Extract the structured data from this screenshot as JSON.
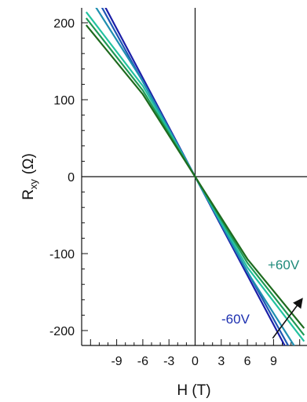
{
  "chart_data": {
    "type": "line",
    "title": "",
    "xlabel": "H (T)",
    "ylabel_main": "R",
    "ylabel_sub": "xy",
    "ylabel_unit": "(Ω)",
    "xlim": [
      -12.5,
      12.5
    ],
    "ylim": [
      -220,
      220
    ],
    "x_ticks": [
      -9,
      -6,
      -3,
      0,
      3,
      6,
      9
    ],
    "x_tick_labels": [
      "-9",
      "-6",
      "-3",
      "0",
      "3",
      "6",
      "9"
    ],
    "y_ticks": [
      -200,
      -100,
      0,
      100,
      200
    ],
    "y_tick_labels": [
      "-200",
      "-100",
      "0",
      "100",
      "200"
    ],
    "zero_lines": true,
    "grid": false,
    "legend": "none",
    "annotations": [
      {
        "text": "+60V",
        "color": "#1f8a7a"
      },
      {
        "text": "-60V",
        "color": "#1c2fb0"
      }
    ],
    "arrow": {
      "from": [
        8.9,
        -210
      ],
      "to": [
        12.2,
        -160
      ]
    },
    "series": [
      {
        "color": "#1b1fa8",
        "x": [
          -12.5,
          0,
          12.5
        ],
        "y": [
          267,
          0,
          -267
        ]
      },
      {
        "color": "#1e56b4",
        "x": [
          -12.5,
          0,
          12.5
        ],
        "y": [
          257,
          0,
          -257
        ]
      },
      {
        "color": "#1f8fb0",
        "x": [
          -12.5,
          -6,
          0,
          6,
          12.5
        ],
        "y": [
          240,
          124,
          0,
          -124,
          -240
        ]
      },
      {
        "color": "#22c2a0",
        "x": [
          -12.5,
          -6,
          0,
          6,
          12.5
        ],
        "y": [
          214,
          118,
          0,
          -118,
          -214
        ]
      },
      {
        "color": "#1f9a56",
        "x": [
          -12.5,
          -6,
          0,
          6,
          12.5
        ],
        "y": [
          206,
          112,
          0,
          -112,
          -206
        ]
      },
      {
        "color": "#1e6a1e",
        "x": [
          -12.5,
          -6,
          0,
          6,
          12.5
        ],
        "y": [
          197,
          107,
          0,
          -107,
          -197
        ]
      }
    ]
  }
}
